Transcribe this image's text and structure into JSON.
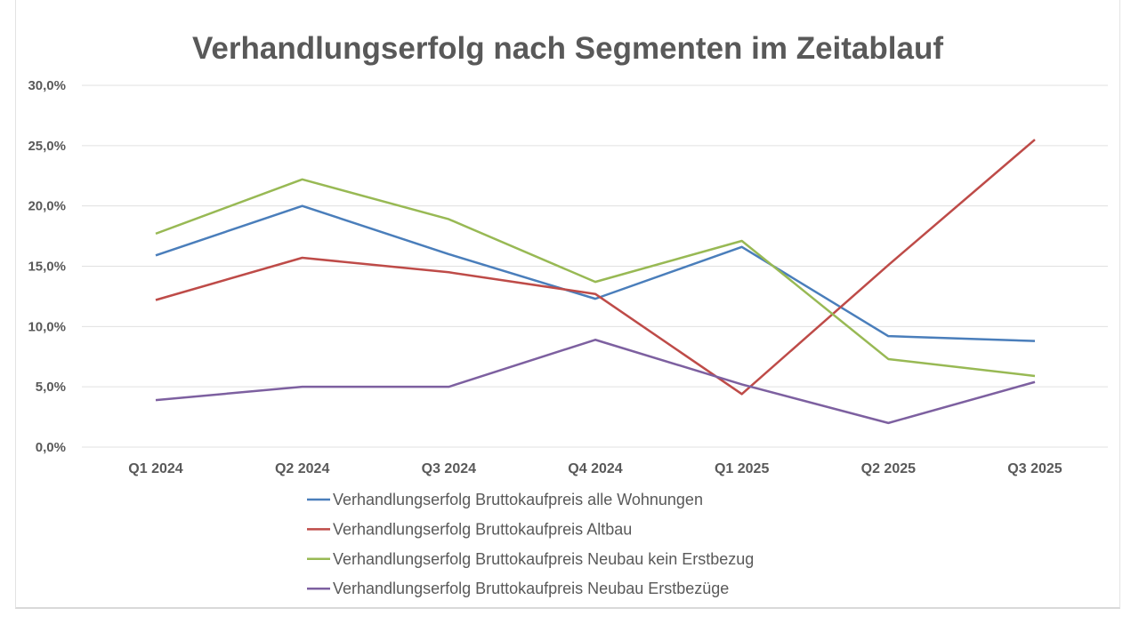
{
  "chart_data": {
    "type": "line",
    "title": "Verhandlungserfolg nach Segmenten im Zeitablauf",
    "xlabel": "",
    "ylabel": "",
    "categories": [
      "Q1 2024",
      "Q2 2024",
      "Q3 2024",
      "Q4 2024",
      "Q1 2025",
      "Q2 2025",
      "Q3 2025"
    ],
    "ylim": [
      0,
      30
    ],
    "yticks": [
      0,
      5,
      10,
      15,
      20,
      25,
      30
    ],
    "ytick_labels": [
      "0,0%",
      "5,0%",
      "10,0%",
      "15,0%",
      "20,0%",
      "25,0%",
      "30,0%"
    ],
    "grid": true,
    "legend_position": "bottom",
    "series": [
      {
        "name": "Verhandlungserfolg Bruttokaufpreis alle Wohnungen",
        "color": "#4a7ebb",
        "values": [
          15.9,
          20.0,
          16.0,
          12.3,
          16.6,
          9.2,
          8.8
        ]
      },
      {
        "name": "Verhandlungserfolg Bruttokaufpreis Altbau",
        "color": "#be4b48",
        "values": [
          12.2,
          15.7,
          14.5,
          12.7,
          4.4,
          15.1,
          25.5
        ]
      },
      {
        "name": "Verhandlungserfolg Bruttokaufpreis Neubau kein  Erstbezug",
        "color": "#98b954",
        "values": [
          17.7,
          22.2,
          18.9,
          13.7,
          17.1,
          7.3,
          5.9
        ]
      },
      {
        "name": "Verhandlungserfolg Bruttokaufpreis Neubau Erstbezüge",
        "color": "#7d60a0",
        "values": [
          3.9,
          5.0,
          5.0,
          8.9,
          5.2,
          2.0,
          5.4
        ]
      }
    ]
  }
}
